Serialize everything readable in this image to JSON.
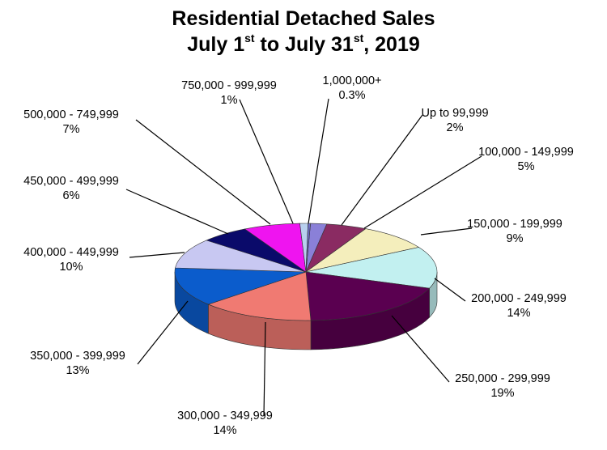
{
  "title": {
    "line1": "Residential Detached Sales",
    "line2_a": "July 1",
    "line2_sup1": "st",
    "line2_b": " to July 31",
    "line2_sup2": "st",
    "line2_c": ", 2019"
  },
  "chart_data": {
    "type": "pie",
    "title": "Residential Detached Sales July 1st to July 31st, 2019",
    "slices": [
      {
        "label": "Up to 99,999",
        "value_label": "2%",
        "value": 2,
        "color": "#8a80d8"
      },
      {
        "label": "100,000 - 149,999",
        "value_label": "5%",
        "value": 5,
        "color": "#8a2b62"
      },
      {
        "label": "150,000 - 199,999",
        "value_label": "9%",
        "value": 9,
        "color": "#f4eebc"
      },
      {
        "label": "200,000 - 249,999",
        "value_label": "14%",
        "value": 14,
        "color": "#c2f0f0"
      },
      {
        "label": "250,000 - 299,999",
        "value_label": "19%",
        "value": 19,
        "color": "#5a0050"
      },
      {
        "label": "300,000 - 349,999",
        "value_label": "14%",
        "value": 14,
        "color": "#f07a72"
      },
      {
        "label": "350,000 - 399,999",
        "value_label": "13%",
        "value": 13,
        "color": "#0b5ccc"
      },
      {
        "label": "400,000 - 449,999",
        "value_label": "10%",
        "value": 10,
        "color": "#c8c8f2"
      },
      {
        "label": "450,000 - 499,999",
        "value_label": "6%",
        "value": 6,
        "color": "#0a0a6a"
      },
      {
        "label": "500,000 - 749,999",
        "value_label": "7%",
        "value": 7,
        "color": "#ef14f0"
      },
      {
        "label": "750,000 - 999,999",
        "value_label": "1%",
        "value": 1,
        "color": "#b8d0ee"
      },
      {
        "label": "1,000,000+",
        "value_label": "0.3%",
        "value": 0.3,
        "color": "#7070c8"
      }
    ]
  }
}
